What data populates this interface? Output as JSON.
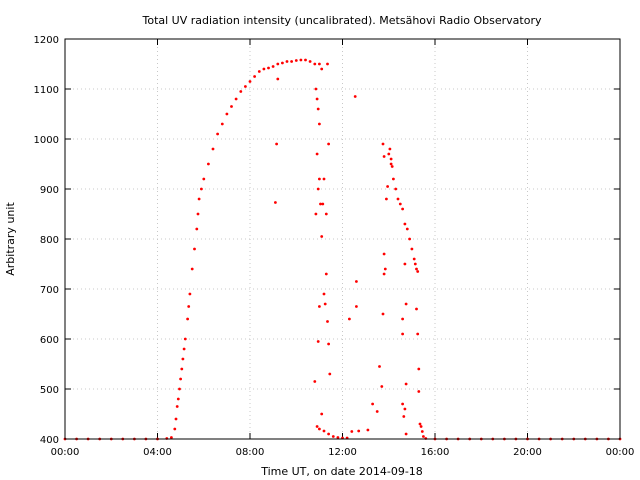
{
  "chart_data": {
    "type": "scatter",
    "title": "Total UV radiation intensity (uncalibrated). Metsähovi Radio Observatory",
    "xlabel": "Time UT, on date 2014-09-18",
    "ylabel": "Arbitrary unit",
    "xlim": [
      0,
      24
    ],
    "ylim": [
      400,
      1200
    ],
    "x_ticks": [
      0,
      4,
      8,
      12,
      16,
      20,
      24
    ],
    "x_tick_labels": [
      "00:00",
      "04:00",
      "08:00",
      "12:00",
      "16:00",
      "20:00",
      "00:00"
    ],
    "y_ticks": [
      400,
      500,
      600,
      700,
      800,
      900,
      1000,
      1100,
      1200
    ],
    "y_tick_labels": [
      "400",
      "500",
      "600",
      "700",
      "800",
      "900",
      "1000",
      "1100",
      "1200"
    ],
    "grid": true,
    "legend": "none",
    "series": [
      {
        "color": "#ff0000",
        "points": [
          [
            0.0,
            400
          ],
          [
            0.5,
            400
          ],
          [
            1.0,
            400
          ],
          [
            1.5,
            400
          ],
          [
            2.0,
            400
          ],
          [
            2.5,
            400
          ],
          [
            3.0,
            400
          ],
          [
            3.5,
            400
          ],
          [
            4.0,
            400
          ],
          [
            4.4,
            401
          ],
          [
            4.6,
            403
          ],
          [
            4.75,
            420
          ],
          [
            4.8,
            440
          ],
          [
            4.85,
            465
          ],
          [
            4.9,
            480
          ],
          [
            4.95,
            500
          ],
          [
            5.0,
            520
          ],
          [
            5.05,
            540
          ],
          [
            5.1,
            560
          ],
          [
            5.15,
            580
          ],
          [
            5.2,
            600
          ],
          [
            5.3,
            640
          ],
          [
            5.35,
            665
          ],
          [
            5.4,
            690
          ],
          [
            5.5,
            740
          ],
          [
            5.6,
            780
          ],
          [
            5.7,
            820
          ],
          [
            5.75,
            850
          ],
          [
            5.8,
            880
          ],
          [
            5.9,
            900
          ],
          [
            6.0,
            920
          ],
          [
            6.2,
            950
          ],
          [
            6.4,
            980
          ],
          [
            6.6,
            1010
          ],
          [
            6.8,
            1030
          ],
          [
            7.0,
            1050
          ],
          [
            7.2,
            1065
          ],
          [
            7.4,
            1080
          ],
          [
            7.6,
            1095
          ],
          [
            7.8,
            1105
          ],
          [
            8.0,
            1115
          ],
          [
            8.2,
            1125
          ],
          [
            8.4,
            1135
          ],
          [
            8.6,
            1140
          ],
          [
            8.8,
            1142
          ],
          [
            9.0,
            1145
          ],
          [
            9.2,
            1150
          ],
          [
            9.4,
            1152
          ],
          [
            9.6,
            1155
          ],
          [
            9.8,
            1155
          ],
          [
            10.0,
            1157
          ],
          [
            10.2,
            1158
          ],
          [
            10.4,
            1158
          ],
          [
            10.6,
            1155
          ],
          [
            10.8,
            1150
          ],
          [
            11.0,
            1150
          ],
          [
            11.1,
            1140
          ],
          [
            9.15,
            990
          ],
          [
            9.1,
            873
          ],
          [
            9.2,
            1120
          ],
          [
            10.85,
            1100
          ],
          [
            10.9,
            1080
          ],
          [
            10.95,
            1060
          ],
          [
            11.0,
            1030
          ],
          [
            10.9,
            970
          ],
          [
            11.0,
            920
          ],
          [
            10.95,
            900
          ],
          [
            11.05,
            870
          ],
          [
            10.85,
            850
          ],
          [
            11.2,
            920
          ],
          [
            11.15,
            870
          ],
          [
            11.3,
            850
          ],
          [
            11.1,
            805
          ],
          [
            11.4,
            990
          ],
          [
            11.35,
            1150
          ],
          [
            11.2,
            690
          ],
          [
            11.25,
            670
          ],
          [
            11.3,
            730
          ],
          [
            11.35,
            635
          ],
          [
            11.0,
            665
          ],
          [
            10.95,
            595
          ],
          [
            11.4,
            590
          ],
          [
            11.45,
            530
          ],
          [
            10.8,
            515
          ],
          [
            11.1,
            450
          ],
          [
            10.9,
            425
          ],
          [
            11.0,
            420
          ],
          [
            11.2,
            416
          ],
          [
            11.4,
            410
          ],
          [
            11.6,
            405
          ],
          [
            11.8,
            403
          ],
          [
            12.0,
            402
          ],
          [
            12.2,
            402
          ],
          [
            12.3,
            640
          ],
          [
            12.6,
            665
          ],
          [
            12.6,
            715
          ],
          [
            12.55,
            1085
          ],
          [
            12.4,
            415
          ],
          [
            12.7,
            416
          ],
          [
            13.1,
            418
          ],
          [
            13.3,
            470
          ],
          [
            13.5,
            455
          ],
          [
            13.6,
            545
          ],
          [
            13.7,
            505
          ],
          [
            13.75,
            650
          ],
          [
            13.8,
            730
          ],
          [
            13.8,
            770
          ],
          [
            13.85,
            740
          ],
          [
            13.9,
            880
          ],
          [
            13.95,
            905
          ],
          [
            14.0,
            970
          ],
          [
            14.05,
            980
          ],
          [
            14.1,
            960
          ],
          [
            13.75,
            990
          ],
          [
            13.8,
            965
          ],
          [
            14.1,
            950
          ],
          [
            14.15,
            945
          ],
          [
            14.2,
            920
          ],
          [
            14.3,
            900
          ],
          [
            14.4,
            880
          ],
          [
            14.5,
            870
          ],
          [
            14.6,
            860
          ],
          [
            14.7,
            830
          ],
          [
            14.8,
            820
          ],
          [
            14.9,
            800
          ],
          [
            15.0,
            780
          ],
          [
            15.1,
            760
          ],
          [
            15.15,
            750
          ],
          [
            15.2,
            740
          ],
          [
            15.25,
            735
          ],
          [
            14.6,
            640
          ],
          [
            14.75,
            670
          ],
          [
            14.7,
            750
          ],
          [
            14.6,
            610
          ],
          [
            14.75,
            510
          ],
          [
            14.6,
            470
          ],
          [
            14.7,
            460
          ],
          [
            14.65,
            445
          ],
          [
            14.75,
            410
          ],
          [
            15.2,
            660
          ],
          [
            15.25,
            610
          ],
          [
            15.3,
            540
          ],
          [
            15.3,
            495
          ],
          [
            15.35,
            430
          ],
          [
            15.4,
            425
          ],
          [
            15.45,
            415
          ],
          [
            15.5,
            405
          ],
          [
            15.6,
            401
          ],
          [
            16.0,
            400
          ],
          [
            16.5,
            400
          ],
          [
            17.0,
            400
          ],
          [
            17.5,
            400
          ],
          [
            18.0,
            400
          ],
          [
            18.5,
            400
          ],
          [
            19.0,
            400
          ],
          [
            19.5,
            400
          ],
          [
            20.0,
            400
          ],
          [
            20.5,
            400
          ],
          [
            21.0,
            400
          ],
          [
            21.5,
            400
          ],
          [
            22.0,
            400
          ],
          [
            22.5,
            400
          ],
          [
            23.0,
            400
          ],
          [
            23.5,
            400
          ],
          [
            24.0,
            400
          ]
        ]
      }
    ]
  }
}
